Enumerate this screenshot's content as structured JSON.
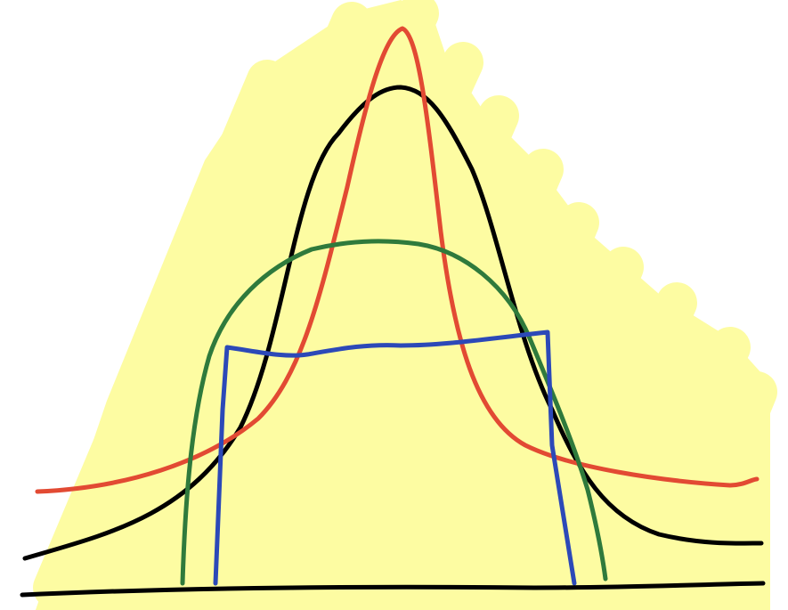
{
  "colors": {
    "background": "#ffffff",
    "highlight": "#fdfca2",
    "baseline": "#000000",
    "black_curve": "#000000",
    "red_curve": "#e24a33",
    "green_curve": "#2f7a3c",
    "blue_curve": "#2c49b8"
  },
  "curves": [
    {
      "id": "black-bell-curve",
      "color_key": "black_curve",
      "shape": "bell"
    },
    {
      "id": "red-peaked-curve",
      "color_key": "red_curve",
      "shape": "sharp-peak"
    },
    {
      "id": "green-dome-curve",
      "color_key": "green_curve",
      "shape": "dome"
    },
    {
      "id": "blue-box-curve",
      "color_key": "blue_curve",
      "shape": "rectangle"
    }
  ]
}
